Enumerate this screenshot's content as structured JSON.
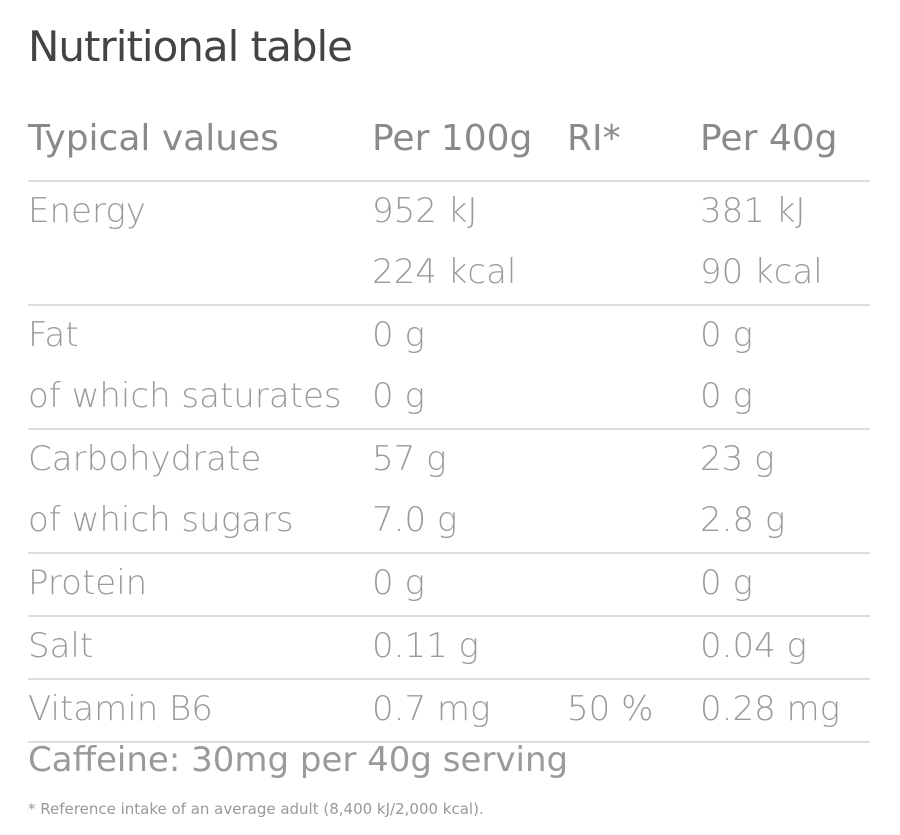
{
  "title": "Nutritional table",
  "headers": [
    "Typical values",
    "Per 100g",
    "RI*",
    "Per 40g"
  ],
  "groups": [
    [
      [
        "Energy",
        "952 kJ",
        "",
        "381 kJ"
      ],
      [
        "",
        "224 kcal",
        "",
        "90 kcal"
      ]
    ],
    [
      [
        "Fat",
        "0 g",
        "",
        "0 g"
      ],
      [
        "of which saturates",
        "0 g",
        "",
        "0 g"
      ]
    ],
    [
      [
        "Carbohydrate",
        "57 g",
        "",
        "23 g"
      ],
      [
        "of which sugars",
        "7.0 g",
        "",
        "2.8 g"
      ]
    ],
    [
      [
        "Protein",
        "0 g",
        "",
        "0 g"
      ]
    ],
    [
      [
        "Salt",
        "0.11 g",
        "",
        "0.04 g"
      ]
    ],
    [
      [
        "Vitamin B6",
        "0.7 mg",
        "50 %",
        "0.28 mg"
      ]
    ]
  ],
  "caffeine": "Caffeine: 30mg per 40g serving",
  "footnote": "* Reference intake of an average adult (8,400 kJ/2,000 kcal)."
}
